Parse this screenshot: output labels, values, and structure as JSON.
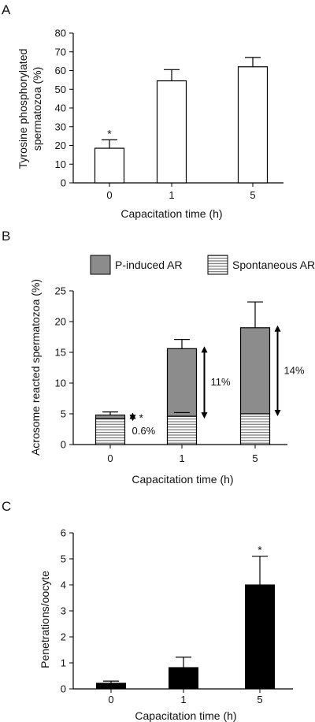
{
  "chart_data": [
    {
      "panel": "A",
      "type": "bar",
      "xlabel": "Capacitation time (h)",
      "ylabel": "Tyrosine phosphorylated spermatozoa (%)",
      "ylabel_lines": [
        "Tyrosine phosphorylated",
        "spermatozoa (%)"
      ],
      "ylim": [
        0,
        80
      ],
      "yticks": [
        0,
        10,
        20,
        30,
        40,
        50,
        60,
        70,
        80
      ],
      "categories": [
        "0",
        "1",
        "5"
      ],
      "values": [
        18.5,
        54.5,
        62
      ],
      "errors": [
        4.5,
        6,
        5
      ],
      "bar_color": "#ffffff",
      "marks": [
        "*",
        "",
        ""
      ]
    },
    {
      "panel": "B",
      "type": "bar",
      "stacked": true,
      "xlabel": "Capacitation time (h)",
      "ylabel": "Acrosome reacted spermatozoa (%)",
      "ylim": [
        0,
        25
      ],
      "yticks": [
        0,
        5,
        10,
        15,
        20,
        25
      ],
      "categories": [
        "0",
        "1",
        "5"
      ],
      "series": [
        {
          "name": "Spontaneous AR",
          "values": [
            4.2,
            4.6,
            5.0
          ],
          "errors": [
            0,
            0.6,
            0
          ],
          "fill": "hatched"
        },
        {
          "name": "P-induced AR",
          "values": [
            0.6,
            11.0,
            14.0
          ],
          "errors": [
            0.5,
            1.5,
            4.2
          ],
          "color": "#8c8c8c"
        }
      ],
      "legend": [
        {
          "name": "P-induced AR",
          "fill": "#8c8c8c"
        },
        {
          "name": "Spontaneous AR",
          "fill": "hatched"
        }
      ],
      "legend_position": "top",
      "annotations": [
        "0.6%",
        "11%",
        "14%"
      ],
      "marks": [
        "*",
        "",
        ""
      ]
    },
    {
      "panel": "C",
      "type": "bar",
      "xlabel": "Capacitation time (h)",
      "ylabel": "Penetrations/oocyte",
      "ylim": [
        0,
        6
      ],
      "yticks": [
        0,
        1,
        2,
        3,
        4,
        5,
        6
      ],
      "categories": [
        "0",
        "1",
        "5"
      ],
      "values": [
        0.22,
        0.82,
        4.0
      ],
      "errors": [
        0.08,
        0.4,
        1.1
      ],
      "bar_color": "#000000",
      "marks": [
        "",
        "",
        "*"
      ]
    }
  ]
}
